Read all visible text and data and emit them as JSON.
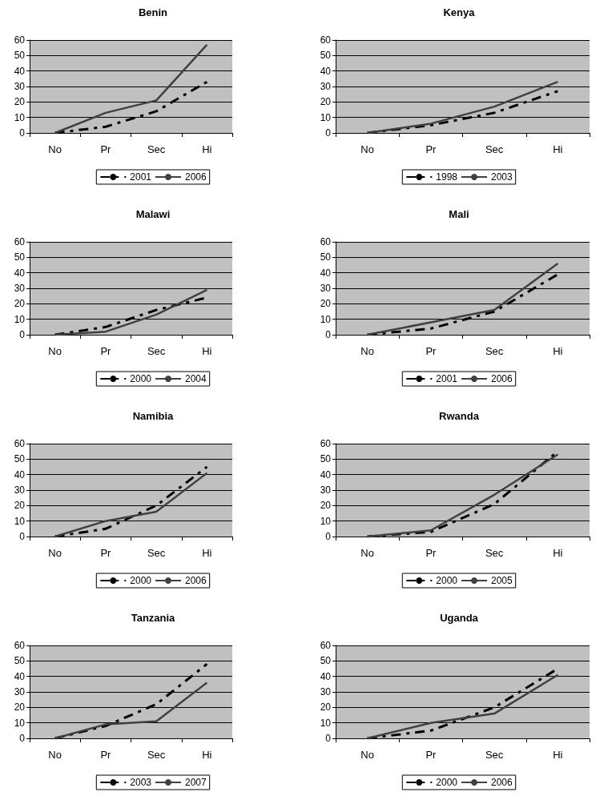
{
  "chart_data": [
    {
      "type": "line",
      "title": "Benin",
      "categories": [
        "No",
        "Pr",
        "Sec",
        "Hi"
      ],
      "ylim": [
        0,
        60
      ],
      "yticks": [
        0,
        10,
        20,
        30,
        40,
        50,
        60
      ],
      "grid": "y",
      "legend": "bottom",
      "marker": "none",
      "series": [
        {
          "name": "2001",
          "color": "#000000",
          "line_style": "dashed",
          "values": [
            0,
            4,
            14,
            33
          ]
        },
        {
          "name": "2006",
          "color": "#404040",
          "line_style": "solid",
          "values": [
            0,
            13,
            21,
            57
          ]
        }
      ]
    },
    {
      "type": "line",
      "title": "Kenya",
      "categories": [
        "No",
        "Pr",
        "Sec",
        "Hi"
      ],
      "ylim": [
        0,
        60
      ],
      "yticks": [
        0,
        10,
        20,
        30,
        40,
        50,
        60
      ],
      "grid": "y",
      "legend": "bottom",
      "marker": "none",
      "series": [
        {
          "name": "1998",
          "color": "#000000",
          "line_style": "dashed",
          "values": [
            0,
            5,
            13,
            27
          ]
        },
        {
          "name": "2003",
          "color": "#404040",
          "line_style": "solid",
          "values": [
            0,
            6,
            17,
            33
          ]
        }
      ]
    },
    {
      "type": "line",
      "title": "Malawi",
      "categories": [
        "No",
        "Pr",
        "Sec",
        "Hi"
      ],
      "ylim": [
        0,
        60
      ],
      "yticks": [
        0,
        10,
        20,
        30,
        40,
        50,
        60
      ],
      "grid": "y",
      "legend": "bottom",
      "marker": "none",
      "series": [
        {
          "name": "2000",
          "color": "#000000",
          "line_style": "dashed",
          "values": [
            0,
            5,
            16,
            24
          ]
        },
        {
          "name": "2004",
          "color": "#404040",
          "line_style": "solid",
          "values": [
            0,
            2,
            13,
            29
          ]
        }
      ]
    },
    {
      "type": "line",
      "title": "Mali",
      "categories": [
        "No",
        "Pr",
        "Sec",
        "Hi"
      ],
      "ylim": [
        0,
        60
      ],
      "yticks": [
        0,
        10,
        20,
        30,
        40,
        50,
        60
      ],
      "grid": "y",
      "legend": "bottom",
      "marker": "none",
      "series": [
        {
          "name": "2001",
          "color": "#000000",
          "line_style": "dashed",
          "values": [
            0,
            4,
            15,
            39
          ]
        },
        {
          "name": "2006",
          "color": "#404040",
          "line_style": "solid",
          "values": [
            0,
            8,
            16,
            46
          ]
        }
      ]
    },
    {
      "type": "line",
      "title": "Namibia",
      "categories": [
        "No",
        "Pr",
        "Sec",
        "Hi"
      ],
      "ylim": [
        0,
        60
      ],
      "yticks": [
        0,
        10,
        20,
        30,
        40,
        50,
        60
      ],
      "grid": "y",
      "legend": "bottom",
      "marker": "none",
      "series": [
        {
          "name": "2000",
          "color": "#000000",
          "line_style": "dashed",
          "values": [
            0,
            5,
            20,
            45
          ]
        },
        {
          "name": "2006",
          "color": "#404040",
          "line_style": "solid",
          "values": [
            0,
            10,
            16,
            41
          ]
        }
      ]
    },
    {
      "type": "line",
      "title": "Rwanda",
      "categories": [
        "No",
        "Pr",
        "Sec",
        "Hi"
      ],
      "ylim": [
        0,
        60
      ],
      "yticks": [
        0,
        10,
        20,
        30,
        40,
        50,
        60
      ],
      "grid": "y",
      "legend": "bottom",
      "marker": "none",
      "series": [
        {
          "name": "2000",
          "color": "#000000",
          "line_style": "dashed",
          "values": [
            0,
            3,
            21,
            55
          ]
        },
        {
          "name": "2005",
          "color": "#404040",
          "line_style": "solid",
          "values": [
            0,
            4,
            27,
            53
          ]
        }
      ]
    },
    {
      "type": "line",
      "title": "Tanzania",
      "categories": [
        "No",
        "Pr",
        "Sec",
        "Hi"
      ],
      "ylim": [
        0,
        60
      ],
      "yticks": [
        0,
        10,
        20,
        30,
        40,
        50,
        60
      ],
      "grid": "y",
      "legend": "bottom",
      "marker": "none",
      "series": [
        {
          "name": "2003",
          "color": "#000000",
          "line_style": "dashed",
          "values": [
            0,
            8,
            22,
            48
          ]
        },
        {
          "name": "2007",
          "color": "#404040",
          "line_style": "solid",
          "values": [
            0,
            9,
            11,
            36
          ]
        }
      ]
    },
    {
      "type": "line",
      "title": "Uganda",
      "categories": [
        "No",
        "Pr",
        "Sec",
        "Hi"
      ],
      "ylim": [
        0,
        60
      ],
      "yticks": [
        0,
        10,
        20,
        30,
        40,
        50,
        60
      ],
      "grid": "y",
      "legend": "bottom",
      "marker": "none",
      "series": [
        {
          "name": "2000",
          "color": "#000000",
          "line_style": "dashed",
          "values": [
            0,
            5,
            20,
            45
          ]
        },
        {
          "name": "2006",
          "color": "#404040",
          "line_style": "solid",
          "values": [
            0,
            10,
            16,
            41
          ]
        }
      ]
    }
  ]
}
